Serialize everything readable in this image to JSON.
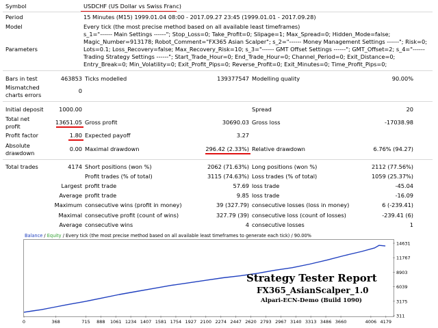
{
  "report": {
    "symbol_label": "Symbol",
    "symbol_value": "USDCHF (US Dollar vs Swiss Franc)",
    "period_label": "Period",
    "period_value": "15 Minutes (M15) 1999.01.04 08:00 - 2017.09.27 23:45 (1999.01.01 - 2017.09.28)",
    "model_label": "Model",
    "model_value": "Every tick (the most precise method based on all available least timeframes)",
    "parameters_label": "Parameters",
    "parameters_value": "s_1=\"------ Main Settings ------\"; Stop_Loss=0; Take_Profit=0; Slipage=1; Max_Spread=0; Hidden_Mode=false; Magic_Number=913178; Robot_Comment=\"FX365 Asian Scalper\"; s_2=\"------ Money Management Settings ------\"; Risk=0; Lots=0.1; Loss_Recovery=false; Max_Recovery_Risk=10; s_3=\"------ GMT Offset Settings ------\"; GMT_Offset=2; s_4=\"------ Trading Strategy Settings ------\"; Start_Trade_Hour=0; End_Trade_Hour=0; Channel_Period=0; Exit_Distance=0; Entry_Break=0; Min_Volatility=0; Exit_Profit_Pips=0; Reverse_Profit=0; Exit_Minutes=0; Time_Profit_Pips=0;"
  },
  "stats": {
    "bars_label": "Bars in test",
    "bars_value": "463853",
    "ticks_label": "Ticks modelled",
    "ticks_value": "139377547",
    "quality_label": "Modelling quality",
    "quality_value": "90.00%",
    "mismatch_label1": "Mismatched",
    "mismatch_label2": "charts errors",
    "mismatch_value": "0",
    "deposit_label": "Initial deposit",
    "deposit_value": "1000.00",
    "spread_label": "Spread",
    "spread_value": "20",
    "netprofit_label1": "Total net",
    "netprofit_label2": "profit",
    "netprofit_value": "13651.05",
    "grossprofit_label": "Gross profit",
    "grossprofit_value": "30690.03",
    "grossloss_label": "Gross loss",
    "grossloss_value": "-17038.98",
    "pf_label": "Profit factor",
    "pf_value": "1.80",
    "payoff_label": "Expected payoff",
    "payoff_value": "3.27",
    "absdd_label1": "Absolute",
    "absdd_label2": "drawdown",
    "absdd_value": "0.00",
    "maxdd_label": "Maximal drawdown",
    "maxdd_value": "296.42 (2.33%)",
    "reldd_label": "Relative drawdown",
    "reldd_value": "6.76% (94.27)",
    "trades_label": "Total trades",
    "trades_value": "4174",
    "short_label": "Short positions (won %)",
    "short_value": "2062 (71.63%)",
    "long_label": "Long positions (won %)",
    "long_value": "2112 (77.56%)",
    "ptrades_label": "Profit trades (% of total)",
    "ptrades_value": "3115 (74.63%)",
    "ltrades_label": "Loss trades (% of total)",
    "ltrades_value": "1059 (25.37%)",
    "largest_label": "Largest",
    "largest_profit_label": "profit trade",
    "largest_profit_value": "57.69",
    "largest_loss_label": "loss trade",
    "largest_loss_value": "-45.04",
    "average_label": "Average",
    "average_profit_label": "profit trade",
    "average_profit_value": "9.85",
    "average_loss_label": "loss trade",
    "average_loss_value": "-16.09",
    "maximum_label": "Maximum",
    "max_wins_label": "consecutive wins (profit in money)",
    "max_wins_value": "39 (327.79)",
    "max_losses_label": "consecutive losses (loss in money)",
    "max_losses_value": "6 (-239.41)",
    "maximal_label": "Maximal",
    "maximal_profit_label": "consecutive profit (count of wins)",
    "maximal_profit_value": "327.79 (39)",
    "maximal_loss_label": "consecutive loss (count of losses)",
    "maximal_loss_value": "-239.41 (6)",
    "avgc_label": "Average",
    "avg_wins_label": "consecutive wins",
    "avg_wins_value": "4",
    "avg_losses_label": "consecutive losses",
    "avg_losses_value": "1"
  },
  "chart_header": {
    "balance": "Balance",
    "slash": " / ",
    "equity": "Equity",
    "rest": " / Every tick (the most precise method based on all available least timeframes to generate each tick) / 90.00%"
  },
  "overlay": {
    "title": "Strategy Tester Report",
    "ea_name": "FX365_AsianScalper_1.0",
    "server": "Alpari-ECN-Demo (Build 1090)"
  },
  "colors": {
    "balance": "#1f3fbf",
    "equity": "#2f9f2f",
    "underline": "#e01010"
  },
  "chart_data": {
    "type": "line",
    "title": "Balance / Equity",
    "x_ticks": [
      0,
      368,
      715,
      888,
      1061,
      1234,
      1407,
      1581,
      1754,
      1927,
      2100,
      2274,
      2447,
      2620,
      2793,
      2967,
      3140,
      3313,
      3486,
      3660,
      4006,
      4179
    ],
    "y_ticks": [
      311,
      3175,
      6039,
      8903,
      11767,
      14631
    ],
    "xlim": [
      0,
      4260
    ],
    "ylim": [
      311,
      15300
    ],
    "series": [
      {
        "name": "Balance",
        "x": [
          0,
          100,
          200,
          350,
          500,
          700,
          900,
          1100,
          1300,
          1500,
          1700,
          1900,
          2100,
          2300,
          2500,
          2700,
          2900,
          3100,
          3300,
          3500,
          3700,
          3900,
          4050,
          4100,
          4174
        ],
        "y": [
          1000,
          1250,
          1500,
          2000,
          2500,
          3100,
          3800,
          4500,
          5100,
          5700,
          6300,
          6800,
          7300,
          7800,
          8200,
          8700,
          9300,
          9800,
          10500,
          11300,
          12200,
          13000,
          13700,
          14200,
          14100
        ]
      }
    ]
  }
}
